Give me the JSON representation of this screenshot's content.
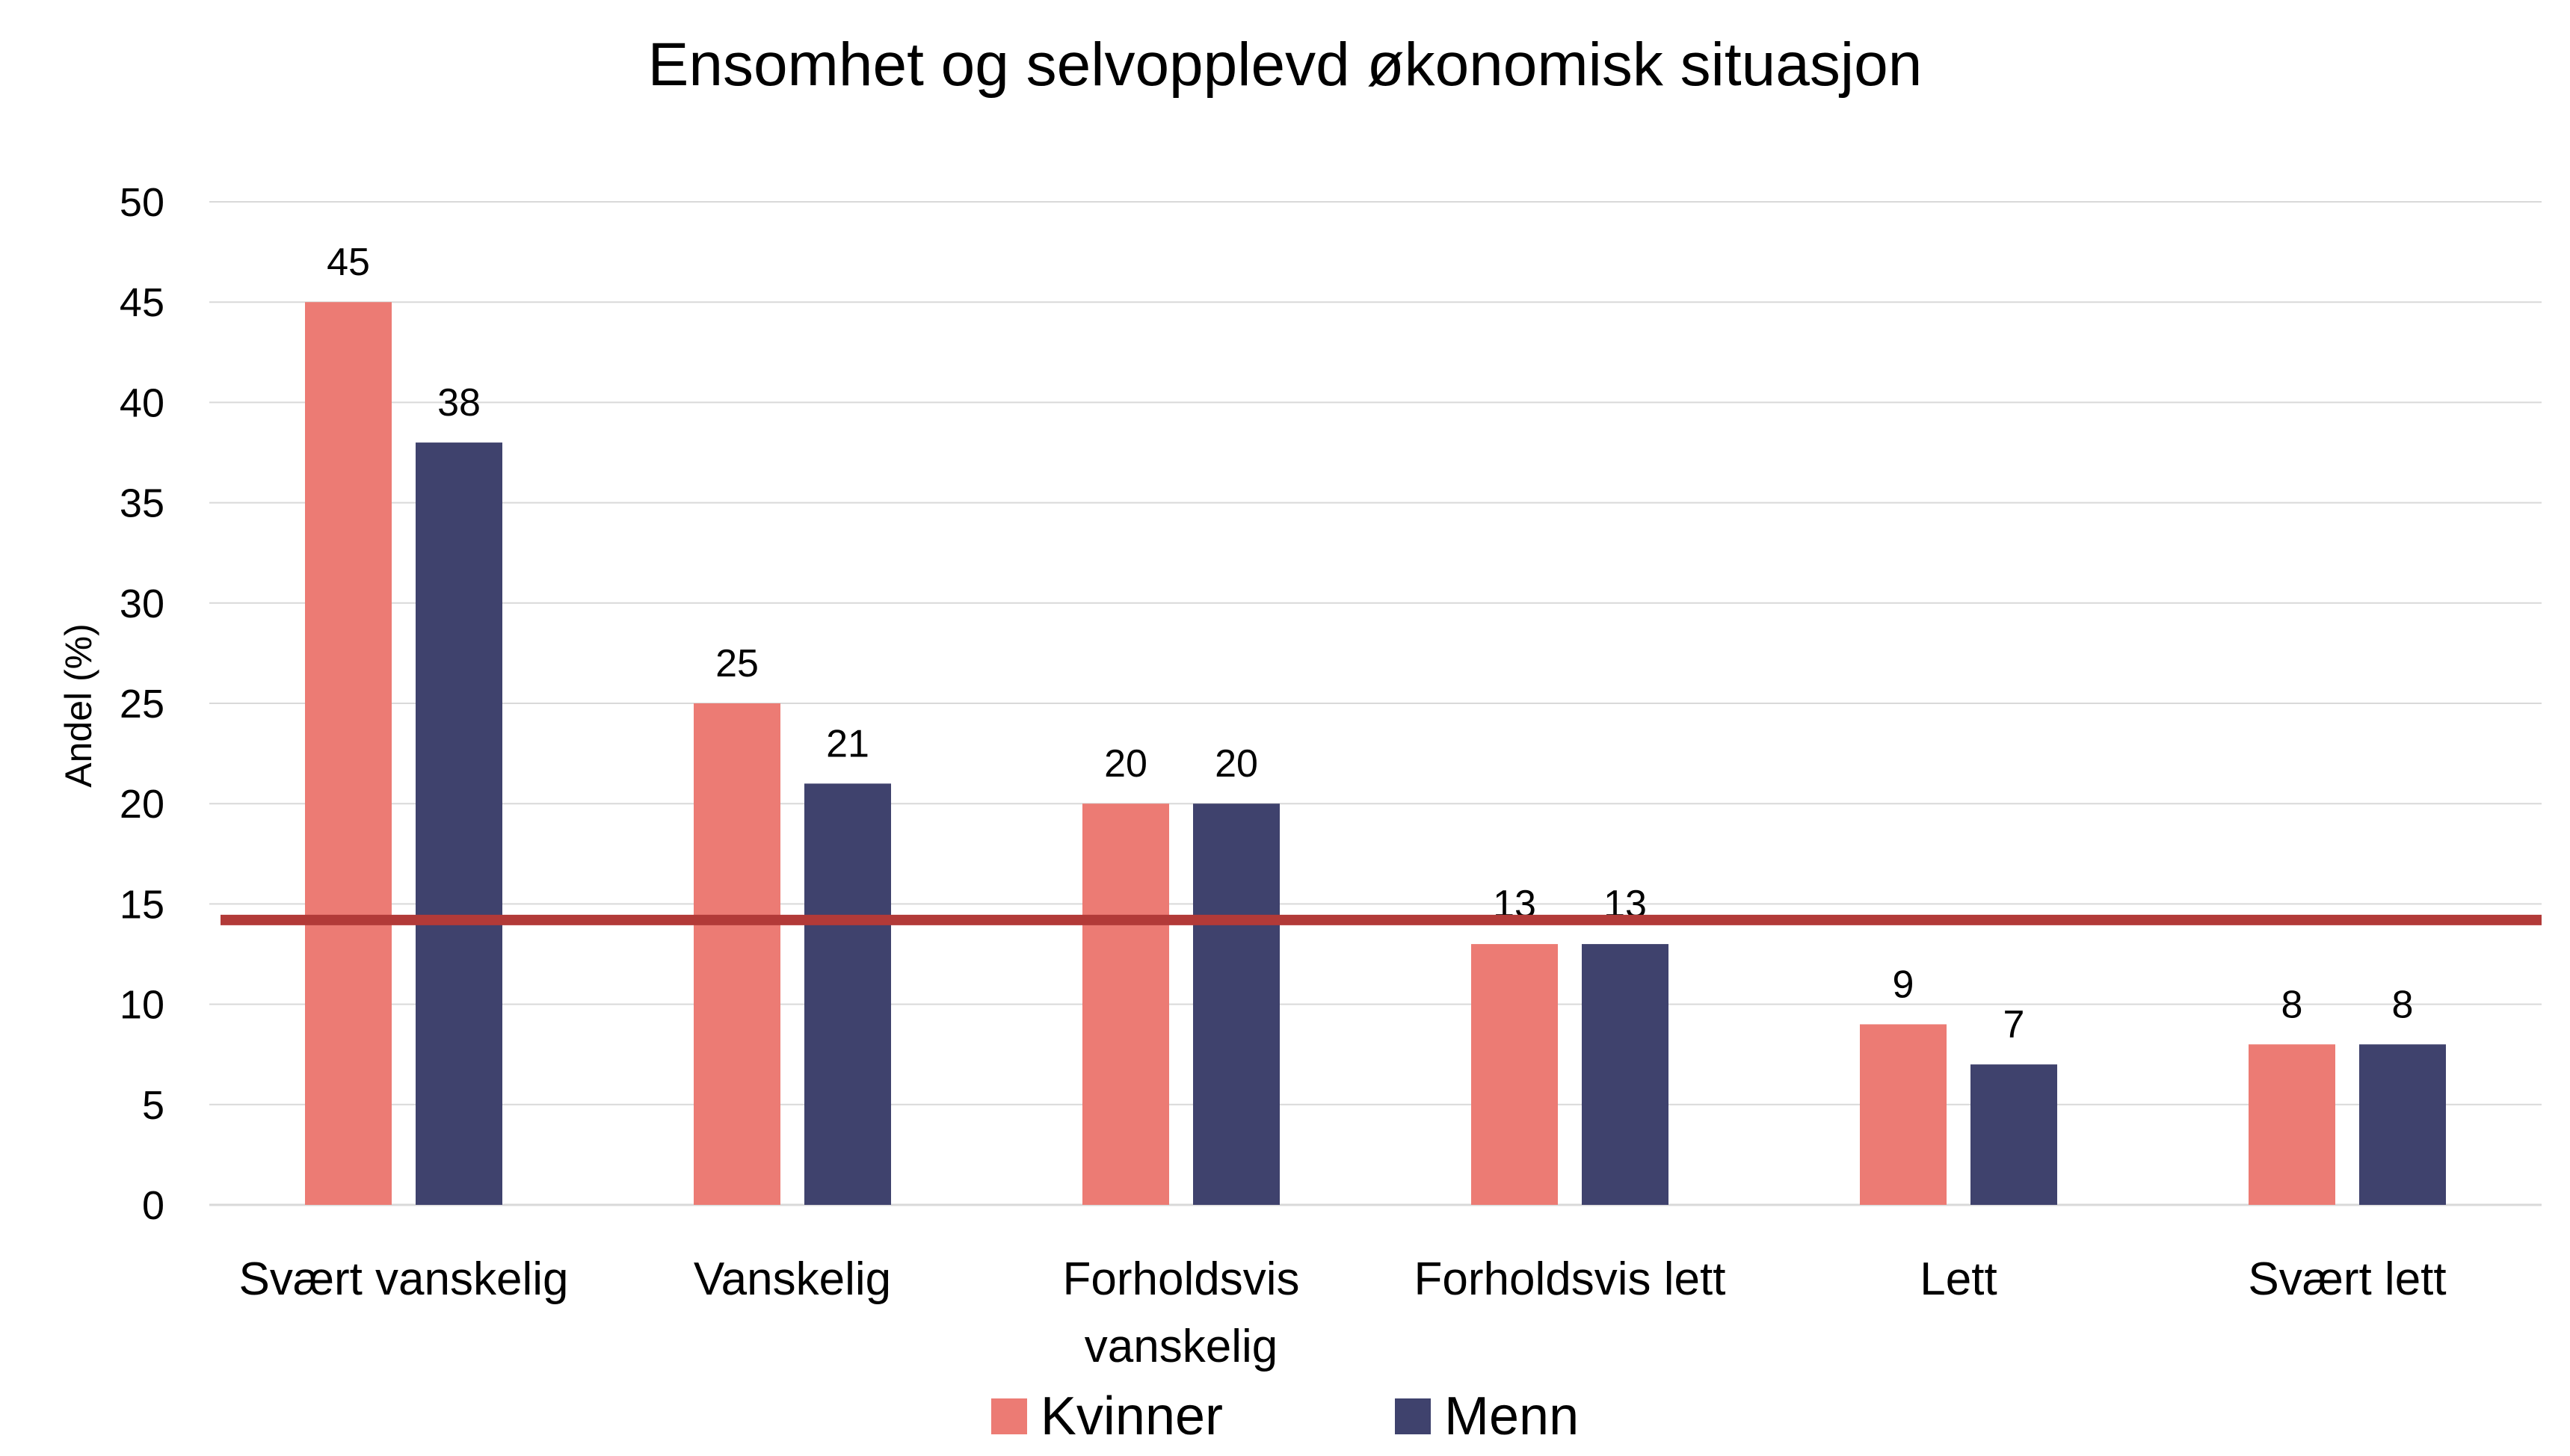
{
  "chart_data": {
    "type": "bar",
    "title": "Ensomhet og selvopplevd økonomisk situasjon",
    "xlabel": "",
    "ylabel": "Andel  (%)",
    "ylim": [
      0,
      50
    ],
    "yticks": [
      0,
      5,
      10,
      15,
      20,
      25,
      30,
      35,
      40,
      45,
      50
    ],
    "grid": true,
    "legend_position": "bottom",
    "categories": [
      [
        "Svært vanskelig"
      ],
      [
        "Vanskelig"
      ],
      [
        "Forholdsvis",
        "vanskelig"
      ],
      [
        "Forholdsvis lett"
      ],
      [
        "Lett"
      ],
      [
        "Svært lett"
      ]
    ],
    "series": [
      {
        "name": "Kvinner",
        "color": "#EC7B74",
        "values": [
          45,
          25,
          20,
          13,
          9,
          8
        ]
      },
      {
        "name": "Menn",
        "color": "#3F426D",
        "values": [
          38,
          21,
          20,
          13,
          7,
          8
        ]
      }
    ],
    "reference_line": {
      "value": 14.2,
      "color": "#B23A38"
    },
    "gridline_color": "#D9D9D9"
  }
}
